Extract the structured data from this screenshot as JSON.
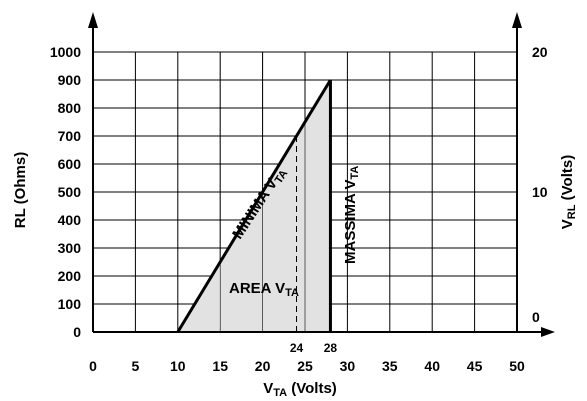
{
  "chart_data": {
    "type": "area",
    "xlabel": "VTA (Volts)",
    "ylabel_left": "RL (Ohms)",
    "ylabel_right": "VRL (Volts)",
    "xlim": [
      0,
      50
    ],
    "ylim_left": [
      0,
      1000
    ],
    "ylim_right": [
      0,
      20
    ],
    "x_ticks": [
      0,
      5,
      10,
      15,
      20,
      25,
      30,
      35,
      40,
      45,
      50
    ],
    "y_ticks_left": [
      0,
      100,
      200,
      300,
      400,
      500,
      600,
      700,
      800,
      900,
      1000
    ],
    "y_ticks_right": [
      0,
      10,
      20
    ],
    "grid": true,
    "series": [
      {
        "name": "MINIMA VTA",
        "x": [
          10,
          28
        ],
        "y": [
          0,
          900
        ]
      },
      {
        "name": "MASSIMA VTA",
        "x": [
          28,
          28
        ],
        "y": [
          0,
          900
        ]
      }
    ],
    "area": {
      "name": "AREA VTA",
      "x": [
        10,
        28,
        28
      ],
      "y": [
        0,
        900,
        0
      ]
    },
    "reference_lines": [
      {
        "x": 24,
        "label": "24",
        "style": "dashed"
      }
    ],
    "extra_tick_labels": [
      {
        "x": 24,
        "label": "24"
      },
      {
        "x": 28,
        "label": "28"
      }
    ]
  },
  "labels": {
    "minima": "MINIMA V",
    "minima_sub": "TA",
    "massima": "MASSIMA V",
    "massima_sub": "TA",
    "area": "AREA V",
    "area_sub": "TA",
    "ylab_left": "RL (Ohms)",
    "ylab_right_main": "V",
    "ylab_right_sub": "RL",
    "ylab_right_rest": " (Volts)",
    "xlab_main": "V",
    "xlab_sub": "TA",
    "xlab_rest": " (Volts)"
  }
}
